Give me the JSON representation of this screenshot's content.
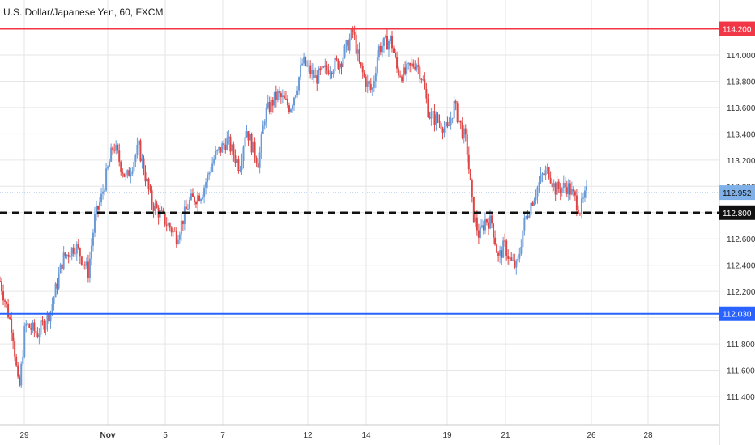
{
  "chart_data": {
    "type": "candlestick",
    "title": "U.S. Dollar/Japanese Yen, 60, FXCM",
    "ylim": [
      111.28,
      114.22
    ],
    "y_ticks": [
      "114.000",
      "113.800",
      "113.600",
      "113.400",
      "113.200",
      "113.000",
      "112.800",
      "112.600",
      "112.400",
      "112.200",
      "112.000",
      "111.800",
      "111.600",
      "111.400"
    ],
    "y_tick_values": [
      114.0,
      113.8,
      113.6,
      113.4,
      113.2,
      113.0,
      112.8,
      112.6,
      112.4,
      112.2,
      112.0,
      111.8,
      111.6,
      111.4
    ],
    "x_ticks": [
      "29",
      "Nov",
      "5",
      "7",
      "12",
      "14",
      "19",
      "21",
      "26",
      "28"
    ],
    "grid": true,
    "price_path": [
      [
        0,
        112.28
      ],
      [
        2,
        111.9
      ],
      [
        3,
        111.42
      ],
      [
        4,
        111.95
      ],
      [
        6,
        111.88
      ],
      [
        8,
        112.05
      ],
      [
        10,
        112.45
      ],
      [
        12,
        112.55
      ],
      [
        14,
        112.35
      ],
      [
        15,
        112.75
      ],
      [
        16,
        112.9
      ],
      [
        18,
        113.32
      ],
      [
        20,
        113.05
      ],
      [
        22,
        113.3
      ],
      [
        24,
        112.88
      ],
      [
        26,
        112.75
      ],
      [
        28,
        112.62
      ],
      [
        30,
        112.88
      ],
      [
        32,
        112.95
      ],
      [
        34,
        113.22
      ],
      [
        36,
        113.35
      ],
      [
        38,
        113.15
      ],
      [
        39,
        113.45
      ],
      [
        40,
        113.3
      ],
      [
        41,
        113.18
      ],
      [
        42,
        113.55
      ],
      [
        44,
        113.7
      ],
      [
        46,
        113.6
      ],
      [
        47,
        113.75
      ],
      [
        48,
        113.95
      ],
      [
        50,
        113.82
      ],
      [
        52,
        113.9
      ],
      [
        54,
        113.95
      ],
      [
        56,
        114.18
      ],
      [
        57,
        113.92
      ],
      [
        58,
        113.8
      ],
      [
        59,
        113.72
      ],
      [
        60,
        114.05
      ],
      [
        62,
        114.12
      ],
      [
        63,
        113.88
      ],
      [
        64,
        113.85
      ],
      [
        66,
        113.95
      ],
      [
        67,
        113.82
      ],
      [
        68,
        113.55
      ],
      [
        70,
        113.48
      ],
      [
        71,
        113.42
      ],
      [
        72,
        113.62
      ],
      [
        74,
        113.32
      ],
      [
        75,
        112.8
      ],
      [
        76,
        112.62
      ],
      [
        77,
        112.75
      ],
      [
        78,
        112.72
      ],
      [
        79,
        112.45
      ],
      [
        80,
        112.55
      ],
      [
        81,
        112.42
      ],
      [
        82,
        112.38
      ],
      [
        83,
        112.7
      ],
      [
        84,
        112.85
      ],
      [
        86,
        113.08
      ],
      [
        87,
        113.12
      ],
      [
        88,
        112.98
      ],
      [
        90,
        113.0
      ],
      [
        91,
        112.92
      ],
      [
        92,
        112.82
      ],
      [
        93,
        112.95
      ]
    ],
    "price_label": "112.952",
    "current_price": 112.952,
    "line_label": "112.800",
    "line_price": 112.8,
    "levels": [
      {
        "value": 114.2,
        "label": "114.200",
        "color": "#f23645"
      },
      {
        "value": 112.03,
        "label": "112.030",
        "color": "#2962ff"
      }
    ],
    "colors": {
      "up": "#6a9bd8",
      "down": "#e04545",
      "grid": "#e6e6e6",
      "axis_text": "#333333",
      "price_label_bg": "#7fb0e8"
    }
  }
}
